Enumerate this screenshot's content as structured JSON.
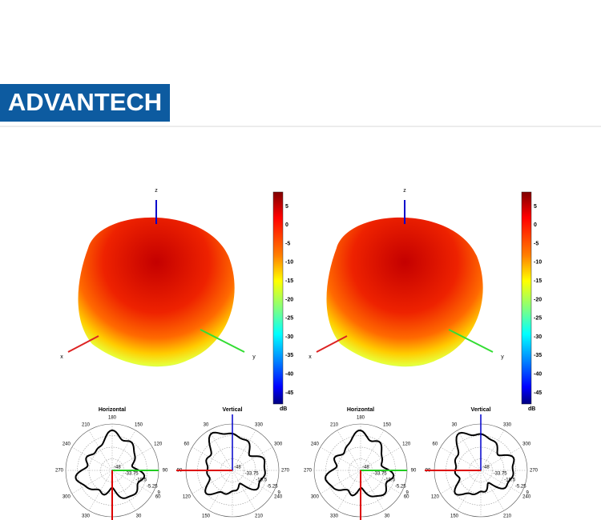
{
  "header": {
    "logo": "ADVANTECH"
  },
  "panels": [
    {
      "axes": {
        "z": "z",
        "x": "x",
        "y": "y"
      },
      "colorbar": {
        "ticks": [
          5,
          0,
          -5,
          -10,
          -15,
          -20,
          -25,
          -30,
          -35,
          -40,
          -45
        ],
        "unit": "dB"
      },
      "horizontal": {
        "title": "Horizontal",
        "angles": [
          180,
          150,
          120,
          90,
          60,
          30,
          330,
          300,
          270,
          240,
          210
        ],
        "radii": [
          -48,
          -33.75,
          -19.5,
          -5.25,
          9
        ]
      },
      "vertical": {
        "title": "Vertical",
        "angles": [
          30,
          330,
          300,
          270,
          240,
          210,
          150,
          120,
          90,
          60
        ],
        "radii": [
          -48,
          -33.75,
          -19.5,
          -5.25,
          9
        ]
      }
    },
    {
      "axes": {
        "z": "z",
        "x": "x",
        "y": "y"
      },
      "colorbar": {
        "ticks": [
          5,
          0,
          -5,
          -10,
          -15,
          -20,
          -25,
          -30,
          -35,
          -40,
          -45
        ],
        "unit": "dB"
      },
      "horizontal": {
        "title": "Horizontal",
        "angles": [
          180,
          150,
          120,
          90,
          60,
          30,
          330,
          300,
          270,
          240,
          210
        ],
        "radii": [
          -48,
          -33.75,
          -19.5,
          -5.25,
          9
        ]
      },
      "vertical": {
        "title": "Vertical",
        "angles": [
          30,
          330,
          300,
          270,
          240,
          210,
          150,
          120,
          90,
          60
        ],
        "radii": [
          -48,
          -33.75,
          -19.5,
          -5.25,
          9
        ]
      }
    }
  ]
}
